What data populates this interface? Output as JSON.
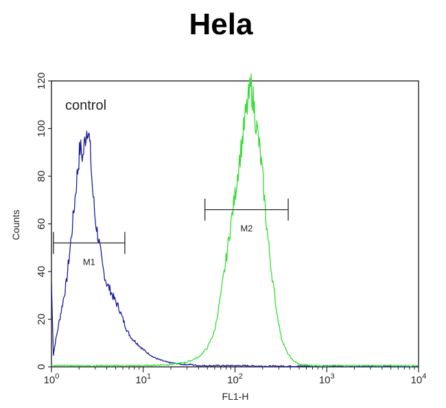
{
  "chart_data": {
    "type": "line",
    "title": "Hela",
    "xlabel": "FL1-H",
    "ylabel": "Counts",
    "x_scale": "log",
    "xlim": [
      1,
      10000
    ],
    "ylim": [
      0,
      120
    ],
    "x_ticks": [
      {
        "value": 1,
        "base": "10",
        "exp": "0"
      },
      {
        "value": 10,
        "base": "10",
        "exp": "1"
      },
      {
        "value": 100,
        "base": "10",
        "exp": "2"
      },
      {
        "value": 1000,
        "base": "10",
        "exp": "3"
      },
      {
        "value": 10000,
        "base": "10",
        "exp": "4"
      }
    ],
    "y_ticks": [
      0,
      20,
      40,
      60,
      80,
      100,
      120
    ],
    "grid": false,
    "annotation": "control",
    "series": [
      {
        "color": "#1a1a9c",
        "x": [
          1.0,
          1.05,
          1.1,
          1.2,
          1.3,
          1.45,
          1.6,
          1.75,
          1.9,
          2.05,
          2.2,
          2.35,
          2.5,
          2.65,
          2.8,
          3.0,
          3.3,
          3.6,
          4.0,
          4.4,
          4.9,
          5.4,
          6.0,
          6.7,
          7.5,
          8.5,
          9.5,
          11,
          13,
          15,
          18,
          22,
          27,
          33,
          40,
          55,
          80,
          120,
          200,
          400,
          800,
          1500,
          3000,
          10000
        ],
        "y": [
          35,
          5,
          10,
          18,
          25,
          35,
          50,
          65,
          80,
          92,
          88,
          97,
          102,
          90,
          75,
          62,
          52,
          42,
          35,
          32,
          28,
          25,
          20,
          15,
          12,
          10,
          8,
          6,
          4,
          3,
          2,
          1.5,
          1,
          1,
          0.5,
          0.5,
          0.5,
          0.5,
          0.3,
          0.3,
          0.3,
          0.3,
          0.2,
          0.2
        ]
      },
      {
        "color": "#33dd33",
        "x": [
          1.0,
          5,
          10,
          20,
          30,
          40,
          50,
          60,
          70,
          80,
          90,
          100,
          110,
          120,
          130,
          140,
          150,
          160,
          170,
          185,
          200,
          220,
          250,
          280,
          320,
          370,
          420,
          500,
          700,
          1000,
          3000,
          10000
        ],
        "y": [
          0.5,
          0.5,
          0.5,
          1,
          2,
          4,
          8,
          15,
          30,
          45,
          60,
          72,
          85,
          95,
          105,
          112,
          118,
          110,
          102,
          92,
          80,
          60,
          40,
          25,
          12,
          6,
          3,
          1,
          0.5,
          0.5,
          0.5,
          0.5
        ]
      }
    ],
    "markers": [
      {
        "label": "M1",
        "x_start": 1.05,
        "x_end": 6.3,
        "y": 52
      },
      {
        "label": "M2",
        "x_start": 47,
        "x_end": 380,
        "y": 66
      }
    ]
  }
}
